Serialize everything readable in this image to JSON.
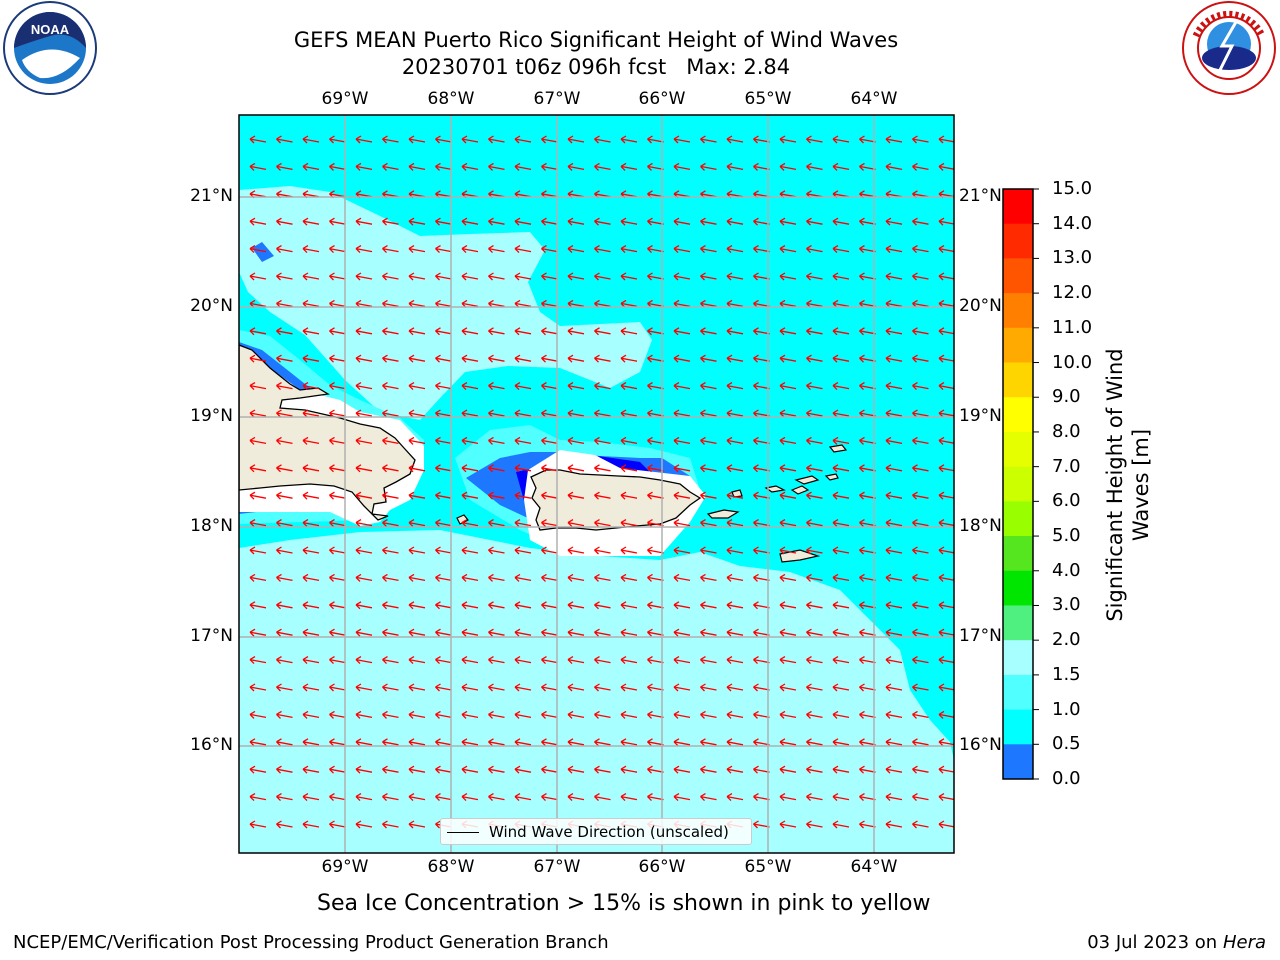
{
  "title": {
    "line1": "GEFS MEAN Puerto Rico Significant Height of Wind Waves",
    "line2": "20230701 t06z 096h fcst   Max: 2.84"
  },
  "caption": "Sea Ice Concentration > 15% is shown in pink to yellow",
  "footer": {
    "left": "NCEP/EMC/Verification Post Processing Product Generation Branch",
    "date": "03 Jul 2023 on ",
    "machine": "Hera"
  },
  "legend": {
    "label": "Wind Wave Direction (unscaled)"
  },
  "logos": {
    "left": "NOAA",
    "right": "NATIONAL WEATHER SERVICE"
  },
  "axes": {
    "lon_ticks": [
      "69°W",
      "68°W",
      "67°W",
      "66°W",
      "65°W",
      "64°W"
    ],
    "lat_ticks": [
      "21°N",
      "20°N",
      "19°N",
      "18°N",
      "17°N",
      "16°N"
    ]
  },
  "colorbar": {
    "title": "Significant Height of Wind Waves [m]",
    "levels": [
      "15.0",
      "14.0",
      "13.0",
      "12.0",
      "11.0",
      "10.0",
      "9.0",
      "8.0",
      "7.0",
      "6.0",
      "5.0",
      "4.0",
      "3.0",
      "2.0",
      "1.5",
      "1.0",
      "0.5",
      "0.0"
    ],
    "colors": [
      "#ff0000",
      "#ff2a00",
      "#ff5500",
      "#ff8000",
      "#ffaa00",
      "#ffd500",
      "#ffff00",
      "#e6ff00",
      "#ccff00",
      "#99ff00",
      "#55e61f",
      "#00e600",
      "#50f080",
      "#a8ffff",
      "#50ffff",
      "#00ffff",
      "#1e78ff",
      "#0000ff"
    ]
  },
  "map_colors": {
    "background": "#00ffff",
    "light": "#a8ffff",
    "mid": "#50ffff",
    "dark_blue": "#1e78ff",
    "deep_blue": "#0000ff",
    "land": "#f0ecdc",
    "arrow": "#ff0000",
    "grid": "#b0b0b0"
  }
}
